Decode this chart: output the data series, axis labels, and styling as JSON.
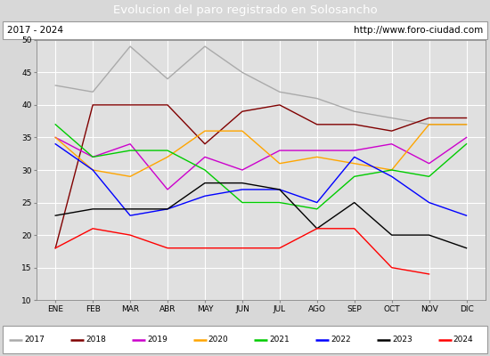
{
  "title": "Evolucion del paro registrado en Solosancho",
  "subtitle_left": "2017 - 2024",
  "subtitle_right": "http://www.foro-ciudad.com",
  "months": [
    "ENE",
    "FEB",
    "MAR",
    "ABR",
    "MAY",
    "JUN",
    "JUL",
    "AGO",
    "SEP",
    "OCT",
    "NOV",
    "DIC"
  ],
  "ylim": [
    10,
    50
  ],
  "yticks": [
    10,
    15,
    20,
    25,
    30,
    35,
    40,
    45,
    50
  ],
  "series": {
    "2017": {
      "color": "#aaaaaa",
      "data": [
        43,
        42,
        49,
        44,
        49,
        45,
        42,
        41,
        39,
        38,
        37,
        37
      ]
    },
    "2018": {
      "color": "#800000",
      "data": [
        18,
        40,
        40,
        40,
        34,
        39,
        40,
        37,
        37,
        36,
        38,
        38
      ]
    },
    "2019": {
      "color": "#cc00cc",
      "data": [
        35,
        32,
        34,
        27,
        32,
        30,
        33,
        33,
        33,
        34,
        31,
        35
      ]
    },
    "2020": {
      "color": "#ffa500",
      "data": [
        35,
        30,
        29,
        32,
        36,
        36,
        31,
        32,
        31,
        30,
        37,
        37
      ]
    },
    "2021": {
      "color": "#00cc00",
      "data": [
        37,
        32,
        33,
        33,
        30,
        25,
        25,
        24,
        29,
        30,
        29,
        34
      ]
    },
    "2022": {
      "color": "#0000ff",
      "data": [
        34,
        30,
        23,
        24,
        26,
        27,
        27,
        25,
        32,
        29,
        25,
        23
      ]
    },
    "2023": {
      "color": "#000000",
      "data": [
        23,
        24,
        24,
        24,
        28,
        28,
        27,
        21,
        25,
        20,
        20,
        18
      ]
    },
    "2024": {
      "color": "#ff0000",
      "data": [
        18,
        21,
        20,
        18,
        18,
        18,
        18,
        21,
        21,
        15,
        14,
        null
      ]
    }
  },
  "background_color": "#d8d8d8",
  "plot_bg_color": "#e0e0e0",
  "header_bg_color": "#4f81bd",
  "title_color": "#ffffff",
  "grid_color": "#ffffff",
  "subtitle_box_color": "#ffffff",
  "legend_box_color": "#ffffff"
}
